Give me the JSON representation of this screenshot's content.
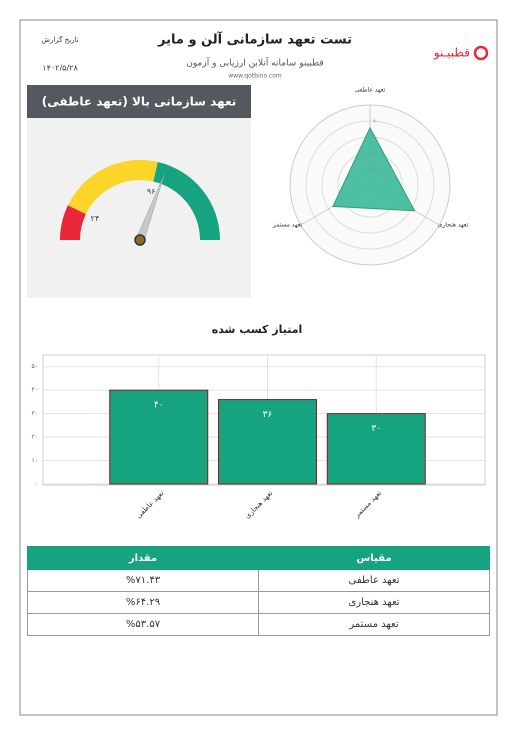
{
  "header": {
    "title": "تست تعهد سازمانی آلن و مایر",
    "subtitle": "قطبینو سامانه آنلاین ارزیابی و آزمون",
    "website": "www.qotbino.com",
    "logo": "قطبیـنو",
    "date_label": "تاریخ گزارش",
    "date": "۱۴۰۲/۵/۲۸"
  },
  "chart_data": [
    {
      "type": "gauge",
      "title": "تعهد سازمانی بالا (تعهد عاطفی)",
      "min": 0,
      "max": 168,
      "value": 103,
      "bands": [
        {
          "from": 0,
          "to": 24,
          "color": "#e8273a"
        },
        {
          "from": 24,
          "to": 96,
          "color": "#fbd52a"
        },
        {
          "from": 96,
          "to": 168,
          "color": "#16a37f"
        }
      ],
      "ticks": [
        {
          "value": 24,
          "label": "۲۴"
        },
        {
          "value": 96,
          "label": "۹۶"
        }
      ]
    },
    {
      "type": "radar",
      "categories": [
        "تعهد عاطفی",
        "تعهد هنجاری",
        "تعهد مستمر"
      ],
      "values": [
        71.43,
        64.29,
        53.57
      ],
      "color": "#3cb89a",
      "rlim": [
        0,
        100
      ],
      "rticks": [
        {
          "value": 20,
          "label": "۲۰"
        },
        {
          "value": 40,
          "label": "۴۰"
        },
        {
          "value": 60,
          "label": "۶۰"
        },
        {
          "value": 80,
          "label": "۸۰"
        }
      ]
    },
    {
      "type": "bar",
      "title": "امتیاز کسب شده",
      "categories": [
        "تعهد عاطفی",
        "تعهد هنجاری",
        "تعهد مستمر"
      ],
      "values": [
        40,
        36,
        30
      ],
      "value_labels": [
        "۴۰",
        "۳۶",
        "۳۰"
      ],
      "color": "#16a37f",
      "ylim": [
        0,
        55
      ],
      "yticks": [
        {
          "value": 0,
          "label": "۰"
        },
        {
          "value": 10,
          "label": "۱۰"
        },
        {
          "value": 20,
          "label": "۲۰"
        },
        {
          "value": 30,
          "label": "۳۰"
        },
        {
          "value": 40,
          "label": "۴۰"
        },
        {
          "value": 50,
          "label": "۵۰"
        }
      ],
      "grid": true
    }
  ],
  "table": {
    "columns": [
      "مقیاس",
      "مقدار"
    ],
    "rows": [
      [
        "تعهد عاطفی",
        "%۷۱.۴۳"
      ],
      [
        "تعهد هنجاری",
        "%۶۴.۲۹"
      ],
      [
        "تعهد مستمر",
        "%۵۳.۵۷"
      ]
    ]
  }
}
